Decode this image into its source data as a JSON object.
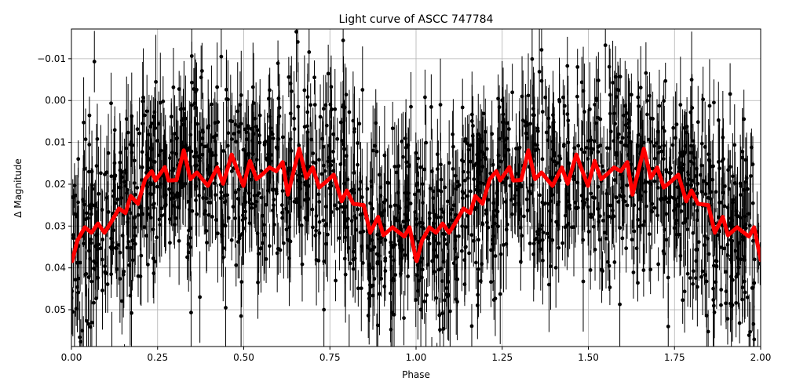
{
  "chart_data": {
    "type": "scatter",
    "title": "Light curve of ASCC 747784",
    "xlabel": "Phase",
    "ylabel": "Δ Magnitude",
    "xlim": [
      0,
      2
    ],
    "ylim": [
      0.0588,
      -0.0171
    ],
    "y_inverted": true,
    "grid": true,
    "xticks": [
      "0.00",
      "0.25",
      "0.50",
      "0.75",
      "1.00",
      "1.25",
      "1.50",
      "1.75",
      "2.00"
    ],
    "xtick_values": [
      0,
      0.25,
      0.5,
      0.75,
      1,
      1.25,
      1.5,
      1.75,
      2
    ],
    "yticks": [
      "−0.01",
      "0.00",
      "0.01",
      "0.02",
      "0.03",
      "0.04",
      "0.05"
    ],
    "ytick_values": [
      -0.01,
      0,
      0.01,
      0.02,
      0.03,
      0.04,
      0.05
    ],
    "series": [
      {
        "kind": "errorbar-points",
        "color": "#000000",
        "note_spread_mag": 0.012
      },
      {
        "kind": "line",
        "color": "#ff0000",
        "x": [
          0.002,
          0.017,
          0.039,
          0.058,
          0.077,
          0.096,
          0.115,
          0.138,
          0.157,
          0.172,
          0.193,
          0.214,
          0.233,
          0.244,
          0.271,
          0.282,
          0.305,
          0.326,
          0.345,
          0.364,
          0.396,
          0.423,
          0.44,
          0.465,
          0.48,
          0.499,
          0.518,
          0.537,
          0.552,
          0.575,
          0.594,
          0.613,
          0.628,
          0.661,
          0.681,
          0.7,
          0.719,
          0.742,
          0.761,
          0.784,
          0.799,
          0.818,
          0.848,
          0.867,
          0.89,
          0.905,
          0.932,
          0.947,
          0.966,
          0.981,
          1.0,
          1.002,
          1.017,
          1.039,
          1.058,
          1.077,
          1.096,
          1.115,
          1.138,
          1.157,
          1.172,
          1.193,
          1.214,
          1.233,
          1.244,
          1.271,
          1.282,
          1.305,
          1.326,
          1.345,
          1.364,
          1.396,
          1.423,
          1.44,
          1.465,
          1.48,
          1.499,
          1.518,
          1.537,
          1.552,
          1.575,
          1.594,
          1.613,
          1.628,
          1.661,
          1.681,
          1.7,
          1.719,
          1.742,
          1.761,
          1.784,
          1.799,
          1.818,
          1.848,
          1.867,
          1.89,
          1.905,
          1.932,
          1.947,
          1.966,
          1.981,
          2.0
        ],
        "y": [
          0.0384,
          0.0335,
          0.0303,
          0.0316,
          0.0294,
          0.0316,
          0.0291,
          0.0258,
          0.0269,
          0.0228,
          0.0247,
          0.0188,
          0.0169,
          0.0191,
          0.0159,
          0.0191,
          0.019,
          0.0119,
          0.0188,
          0.0172,
          0.0204,
          0.016,
          0.0199,
          0.0129,
          0.0163,
          0.0204,
          0.0144,
          0.0188,
          0.0178,
          0.016,
          0.0169,
          0.0147,
          0.0225,
          0.0115,
          0.0185,
          0.016,
          0.0208,
          0.0192,
          0.0177,
          0.0241,
          0.0215,
          0.0247,
          0.025,
          0.0316,
          0.0278,
          0.0322,
          0.0303,
          0.0313,
          0.0325,
          0.0303,
          0.0381,
          0.0384,
          0.0335,
          0.0303,
          0.0316,
          0.0294,
          0.0316,
          0.0291,
          0.0258,
          0.0269,
          0.0228,
          0.0247,
          0.0188,
          0.0169,
          0.0191,
          0.0159,
          0.0191,
          0.019,
          0.0119,
          0.0188,
          0.0172,
          0.0204,
          0.016,
          0.0199,
          0.0129,
          0.0163,
          0.0204,
          0.0144,
          0.0188,
          0.0178,
          0.016,
          0.0169,
          0.0147,
          0.0225,
          0.0115,
          0.0185,
          0.016,
          0.0208,
          0.0192,
          0.0177,
          0.0241,
          0.0215,
          0.0247,
          0.025,
          0.0316,
          0.0278,
          0.0322,
          0.0303,
          0.0313,
          0.0325,
          0.0303,
          0.0381
        ]
      }
    ]
  }
}
